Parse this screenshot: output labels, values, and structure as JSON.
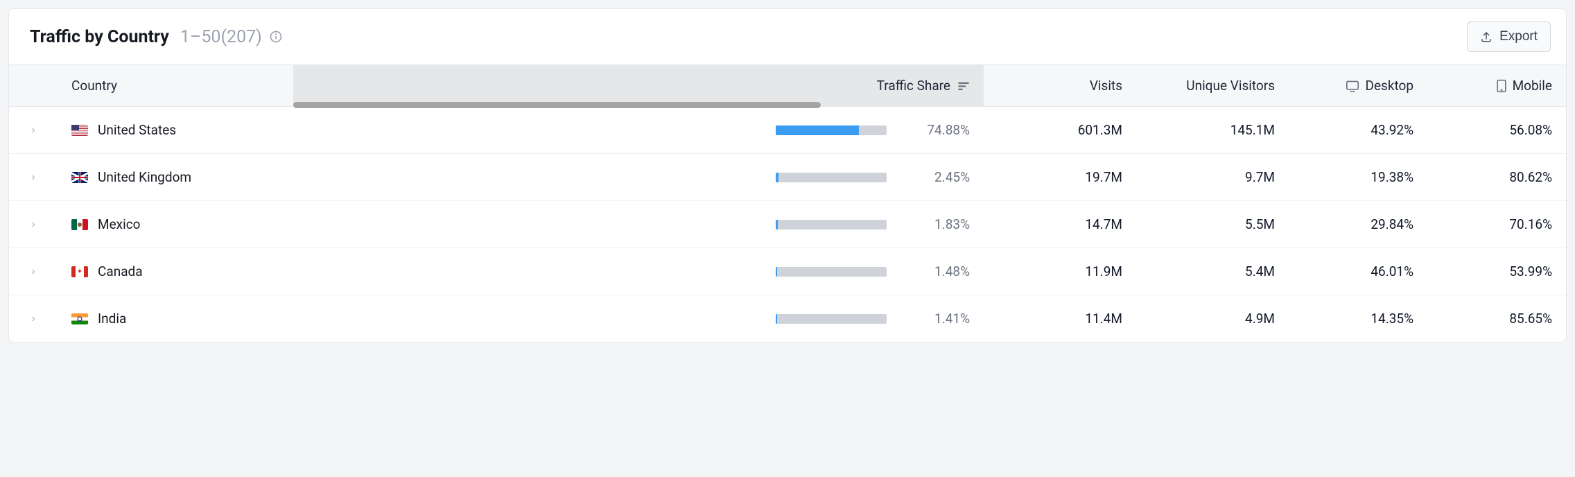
{
  "header": {
    "title": "Traffic by Country",
    "range": "1–50(207)",
    "export_label": "Export"
  },
  "columns": {
    "country": "Country",
    "traffic_share": "Traffic Share",
    "visits": "Visits",
    "unique_visitors": "Unique Visitors",
    "desktop": "Desktop",
    "mobile": "Mobile"
  },
  "sorted_column": "traffic_share",
  "sort_direction": "desc",
  "colors": {
    "card_bg": "#ffffff",
    "page_bg": "#f4f5f7",
    "header_bg": "#f6f7f8",
    "sorted_bg": "#e6e7e9",
    "border": "#e5e7eb",
    "text": "#171a22",
    "muted": "#6b7280",
    "bar_bg": "#cfd3d9",
    "bar_fill": "#3b9cf2",
    "scrollbar": "#a3a3a3"
  },
  "scrollbar": {
    "left_pct": 0,
    "width_pct": 53
  },
  "rows": [
    {
      "country": "United States",
      "flag": "us",
      "share_pct": 74.88,
      "visits": "601.3M",
      "unique": "145.1M",
      "desktop": "43.92%",
      "mobile": "56.08%"
    },
    {
      "country": "United Kingdom",
      "flag": "gb",
      "share_pct": 2.45,
      "visits": "19.7M",
      "unique": "9.7M",
      "desktop": "19.38%",
      "mobile": "80.62%"
    },
    {
      "country": "Mexico",
      "flag": "mx",
      "share_pct": 1.83,
      "visits": "14.7M",
      "unique": "5.5M",
      "desktop": "29.84%",
      "mobile": "70.16%"
    },
    {
      "country": "Canada",
      "flag": "ca",
      "share_pct": 1.48,
      "visits": "11.9M",
      "unique": "5.4M",
      "desktop": "46.01%",
      "mobile": "53.99%"
    },
    {
      "country": "India",
      "flag": "in",
      "share_pct": 1.41,
      "visits": "11.4M",
      "unique": "4.9M",
      "desktop": "14.35%",
      "mobile": "85.65%"
    }
  ]
}
